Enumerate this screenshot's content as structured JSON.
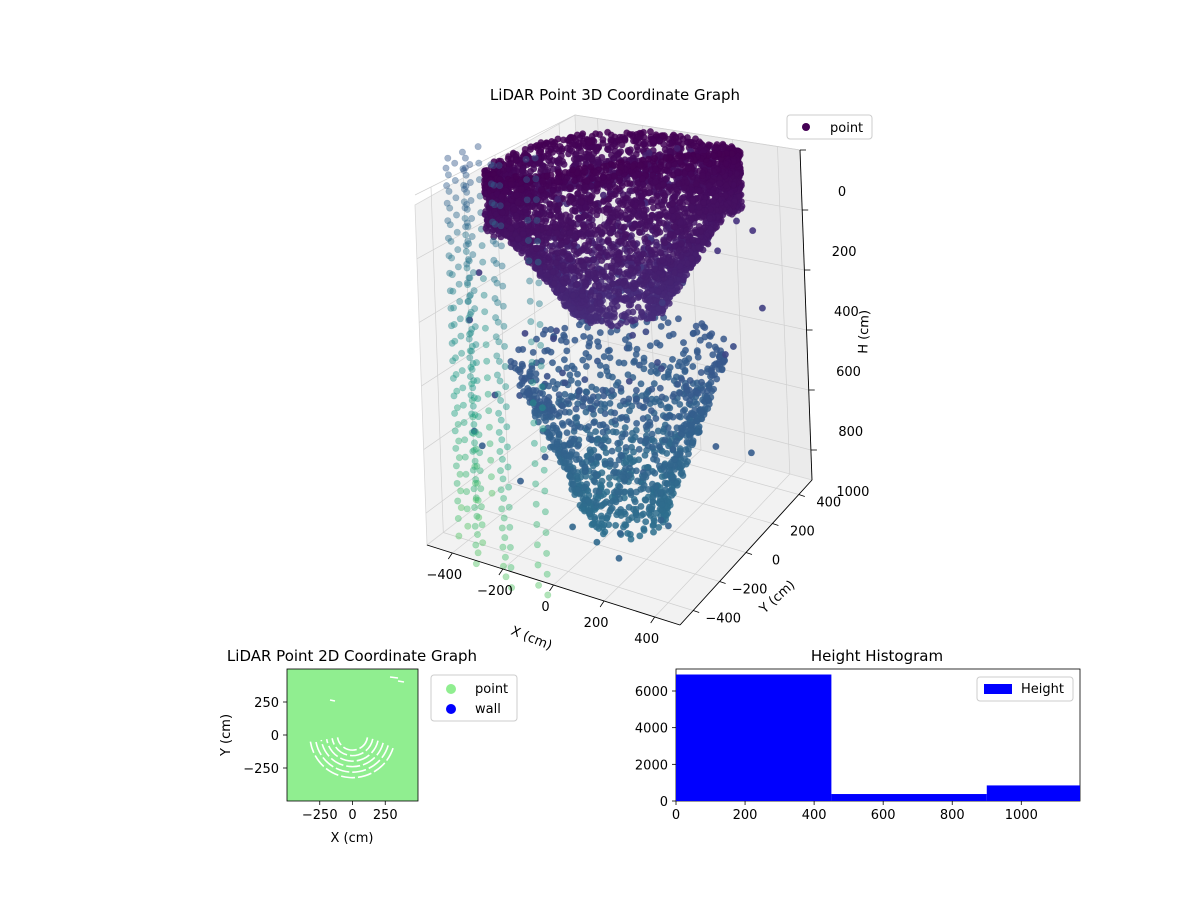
{
  "chart_data": [
    {
      "type": "scatter",
      "projection": "3d",
      "title": "LiDAR Point 3D Coordinate Graph",
      "xlabel": "X (cm)",
      "ylabel": "Y (cm)",
      "zlabel": "H (cm)",
      "xticks": [
        "−400",
        "−200",
        "0",
        "200",
        "400"
      ],
      "yticks": [
        "−400",
        "−200",
        "0",
        "200",
        "400"
      ],
      "zticks": [
        "0",
        "200",
        "400",
        "600",
        "800",
        "1000"
      ],
      "xlim": [
        -500,
        500
      ],
      "ylim": [
        -500,
        500
      ],
      "zlim": [
        1100,
        0
      ],
      "zaxis_inverted": true,
      "grid": true,
      "legend": {
        "position": "top-right",
        "entries": [
          "point"
        ]
      },
      "colormap": "viridis",
      "series": [
        {
          "name": "point",
          "description_points": "dense ring of points at H≈0–150 (radius≈450), funnel narrowing to H≈450, then bowl widening and narrowing to H≈1100 (radius≈150)",
          "color": "#440154"
        }
      ],
      "structure": {
        "top_ring": {
          "z": [
            0,
            150
          ],
          "radius": 440
        },
        "funnel": {
          "z": [
            150,
            470
          ],
          "radius_top": 420,
          "radius_bottom": 140
        },
        "lower_bowl": {
          "z": [
            600,
            1100
          ],
          "radius_top": 380,
          "radius_bottom": 130
        }
      }
    },
    {
      "type": "scatter",
      "title": "LiDAR Point 2D Coordinate Graph",
      "xlabel": "X (cm)",
      "ylabel": "Y (cm)",
      "xticks": [
        "−250",
        "0",
        "250"
      ],
      "yticks": [
        "−250",
        "0",
        "250"
      ],
      "xlim": [
        -500,
        500
      ],
      "ylim": [
        -500,
        500
      ],
      "legend": {
        "position": "right",
        "entries": [
          {
            "name": "point",
            "color": "#90ee90"
          },
          {
            "name": "wall",
            "color": "#0000ff"
          }
        ]
      },
      "series": [
        {
          "name": "point",
          "color": "#90ee90"
        },
        {
          "name": "wall",
          "color": "#0000ff"
        }
      ]
    },
    {
      "type": "bar",
      "title": "Height Histogram",
      "xlabel": "",
      "ylabel": "",
      "xticks": [
        "0",
        "200",
        "400",
        "600",
        "800",
        "1000"
      ],
      "yticks": [
        "0",
        "2000",
        "4000",
        "6000"
      ],
      "xlim": [
        0,
        1170
      ],
      "ylim": [
        0,
        7200
      ],
      "legend": {
        "position": "top-right",
        "entries": [
          "Height"
        ]
      },
      "color": "#0000ff",
      "bins": [
        {
          "x0": 0,
          "x1": 450,
          "value": 6900
        },
        {
          "x0": 450,
          "x1": 900,
          "value": 380
        },
        {
          "x0": 900,
          "x1": 1170,
          "value": 850
        }
      ]
    }
  ]
}
